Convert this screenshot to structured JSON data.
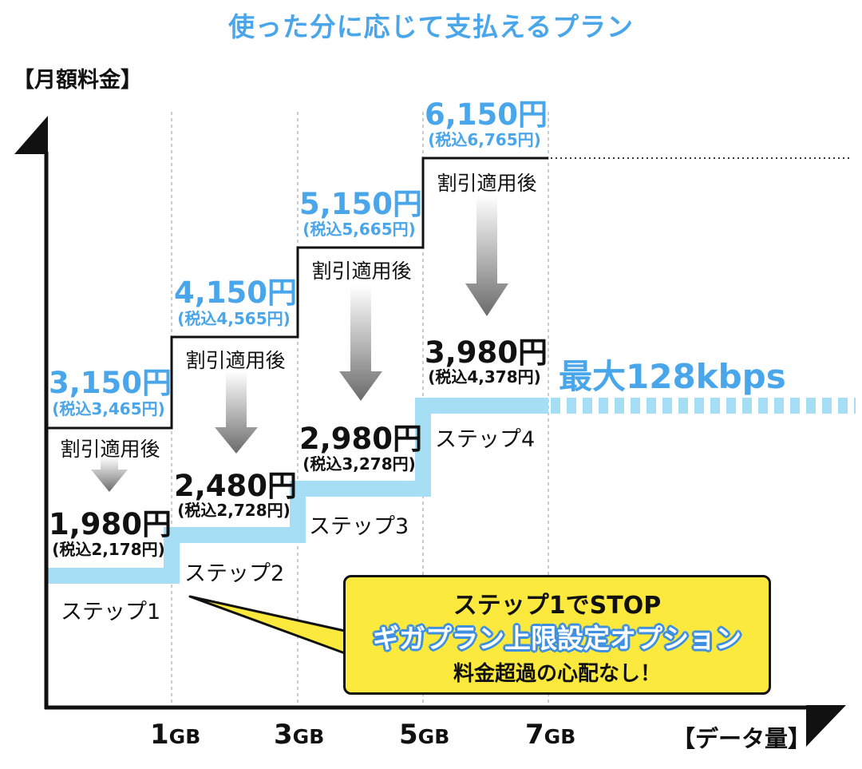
{
  "title": "使った分に応じて支払えるプラン",
  "y_axis_label": "【月額料金】",
  "x_axis_label": "【データ量】",
  "x_ticks": [
    {
      "num": "1",
      "unit": "GB"
    },
    {
      "num": "3",
      "unit": "GB"
    },
    {
      "num": "5",
      "unit": "GB"
    },
    {
      "num": "7",
      "unit": "GB"
    }
  ],
  "discount_label": "割引適用後",
  "speed_label": "最大128kbps",
  "steps": [
    {
      "label": "ステップ1",
      "price": "3,150円",
      "price_tax": "(税込3,465円)",
      "discounted": "1,980円",
      "discounted_tax": "(税込2,178円)"
    },
    {
      "label": "ステップ2",
      "price": "4,150円",
      "price_tax": "(税込4,565円)",
      "discounted": "2,480円",
      "discounted_tax": "(税込2,728円)"
    },
    {
      "label": "ステップ3",
      "price": "5,150円",
      "price_tax": "(税込5,665円)",
      "discounted": "2,980円",
      "discounted_tax": "(税込3,278円)"
    },
    {
      "label": "ステップ4",
      "price": "6,150円",
      "price_tax": "(税込6,765円)",
      "discounted": "3,980円",
      "discounted_tax": "(税込4,378円)"
    }
  ],
  "callout": {
    "line1": "ステップ1でSTOP",
    "line2": "ギガプラン上限設定オプション",
    "line3": "料金超過の心配なし！"
  },
  "colors": {
    "accent_blue": "#4aa6ea",
    "line_light_blue": "#a6dff5",
    "callout_yellow": "#fbe93d",
    "axis": "#111111"
  }
}
